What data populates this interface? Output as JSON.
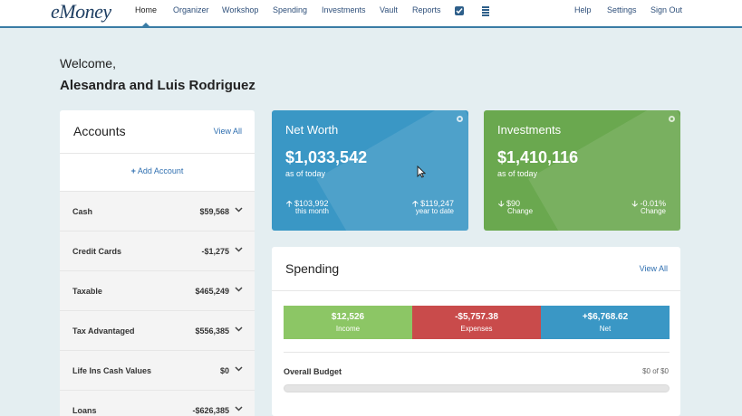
{
  "app": {
    "logo": "eMoney"
  },
  "nav": {
    "items": [
      {
        "label": "Home",
        "active": true
      },
      {
        "label": "Organizer"
      },
      {
        "label": "Workshop"
      },
      {
        "label": "Spending"
      },
      {
        "label": "Investments"
      },
      {
        "label": "Vault"
      },
      {
        "label": "Reports"
      }
    ],
    "icons": [
      "checklist-icon",
      "stack-icon"
    ],
    "right_items": [
      {
        "label": "Help"
      },
      {
        "label": "Settings"
      },
      {
        "label": "Sign Out"
      }
    ]
  },
  "welcome": {
    "greeting": "Welcome,",
    "names": "Alesandra and Luis Rodriguez"
  },
  "accounts": {
    "title": "Accounts",
    "view_all": "View All",
    "add_label": "Add Account",
    "rows": [
      {
        "label": "Cash",
        "value": "$59,568"
      },
      {
        "label": "Credit Cards",
        "value": "-$1,275"
      },
      {
        "label": "Taxable",
        "value": "$465,249"
      },
      {
        "label": "Tax Advantaged",
        "value": "$556,385"
      },
      {
        "label": "Life Ins Cash Values",
        "value": "$0"
      },
      {
        "label": "Loans",
        "value": "-$626,385"
      }
    ]
  },
  "net_worth": {
    "title": "Net Worth",
    "value": "$1,033,542",
    "subtitle": "as of today",
    "stat1_value": "$103,992",
    "stat1_label": "this month",
    "stat2_value": "$119,247",
    "stat2_label": "year to date",
    "color": "#3a97c5"
  },
  "investments": {
    "title": "Investments",
    "value": "$1,410,116",
    "subtitle": "as of today",
    "stat1_value": "$90",
    "stat1_label": "Change",
    "stat2_value": "-0.01%",
    "stat2_label": "Change",
    "color": "#6aa84f"
  },
  "spending": {
    "title": "Spending",
    "view_all": "View All",
    "income_value": "$12,526",
    "income_label": "Income",
    "expenses_value": "-$5,757.38",
    "expenses_label": "Expenses",
    "net_value": "+$6,768.62",
    "net_label": "Net",
    "budget_label": "Overall Budget",
    "budget_value": "$0 of $0",
    "budget_progress": 0
  }
}
